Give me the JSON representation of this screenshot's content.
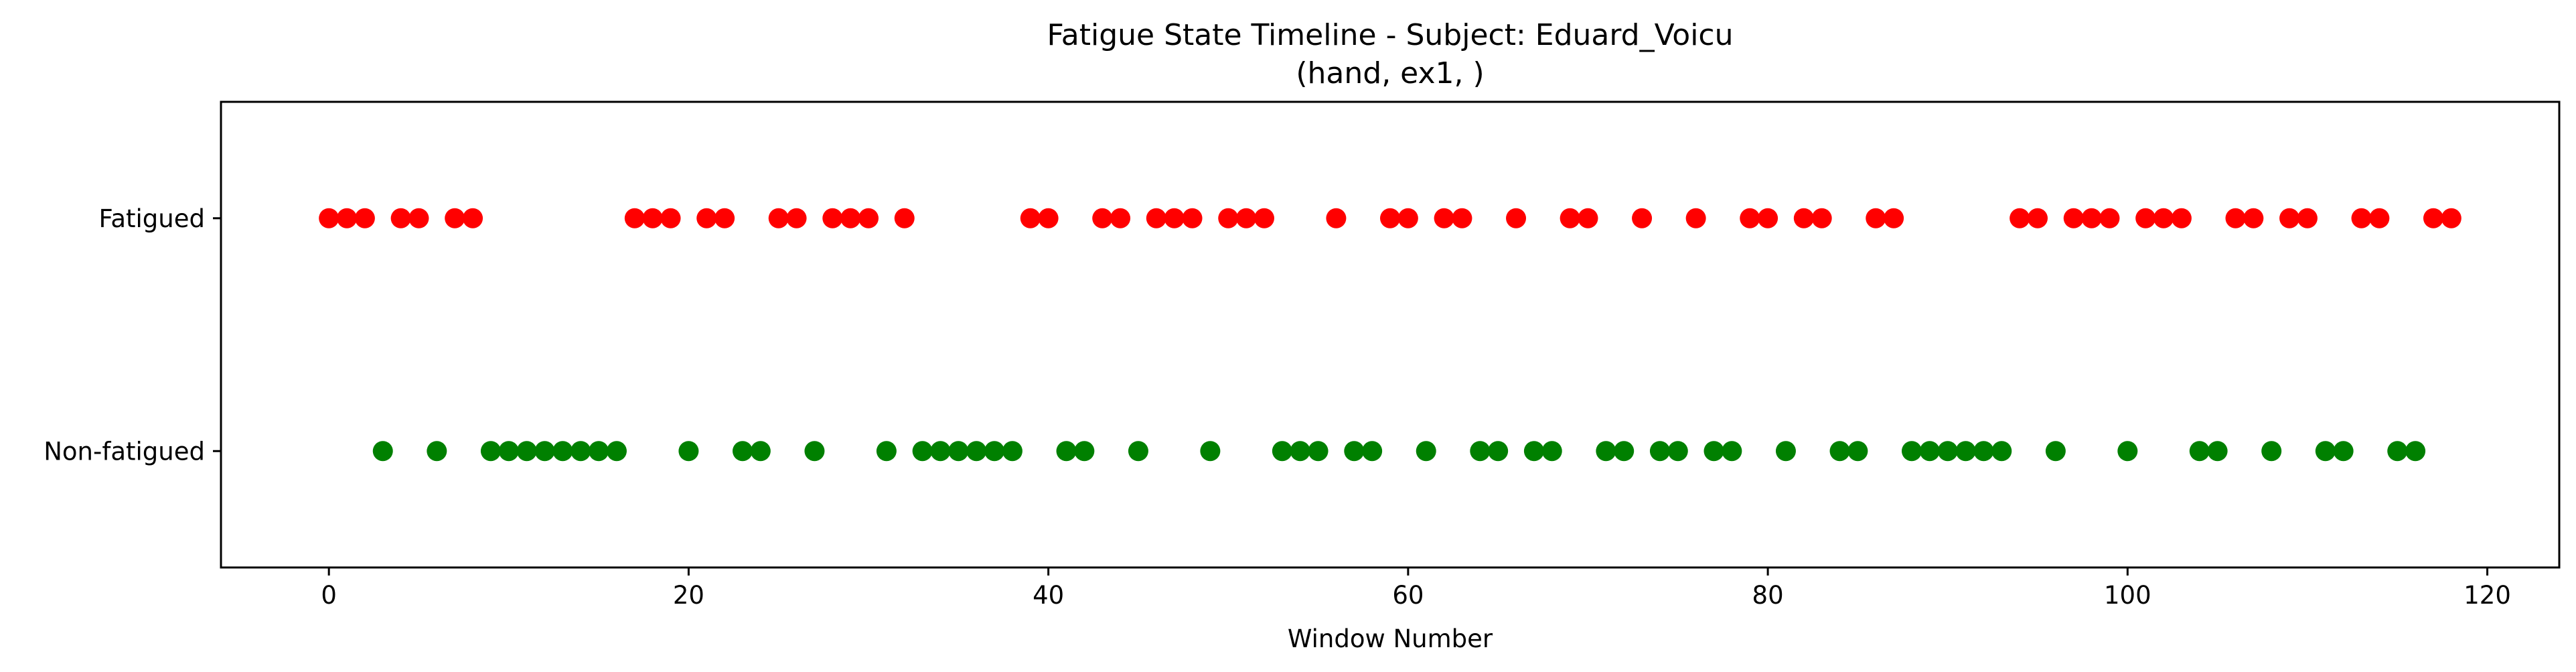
{
  "chart_data": {
    "type": "scatter",
    "title": "Fatigue State Timeline - Subject: Eduard_Voicu",
    "subtitle": "(hand, ex1, )",
    "xlabel": "Window Number",
    "ylabel": "",
    "xlim": [
      -6,
      124
    ],
    "ylim": [
      -0.5,
      1.5
    ],
    "xticks": [
      0,
      20,
      40,
      60,
      80,
      100,
      120
    ],
    "yticks": [
      {
        "value": 1,
        "label": "Fatigued"
      },
      {
        "value": 0,
        "label": "Non-fatigued"
      }
    ],
    "grid": false,
    "series": [
      {
        "color": "#ff0000",
        "y": 1,
        "x": [
          0,
          1,
          2,
          4,
          5,
          7,
          8,
          17,
          18,
          19,
          21,
          22,
          25,
          26,
          28,
          29,
          30,
          32,
          39,
          40,
          43,
          44,
          46,
          47,
          48,
          50,
          51,
          52,
          56,
          59,
          60,
          62,
          63,
          66,
          69,
          70,
          73,
          76,
          79,
          80,
          82,
          83,
          86,
          87,
          94,
          95,
          97,
          98,
          99,
          101,
          102,
          103,
          106,
          107,
          109,
          110,
          113,
          114,
          117,
          118
        ]
      },
      {
        "color": "#008000",
        "y": 0,
        "x": [
          3,
          6,
          9,
          10,
          11,
          12,
          13,
          14,
          15,
          16,
          20,
          23,
          24,
          27,
          31,
          33,
          34,
          35,
          36,
          37,
          38,
          41,
          42,
          45,
          49,
          53,
          54,
          55,
          57,
          58,
          61,
          64,
          65,
          67,
          68,
          71,
          72,
          74,
          75,
          77,
          78,
          81,
          84,
          85,
          88,
          89,
          90,
          91,
          92,
          93,
          96,
          100,
          104,
          105,
          108,
          111,
          112,
          115,
          116
        ]
      }
    ]
  }
}
